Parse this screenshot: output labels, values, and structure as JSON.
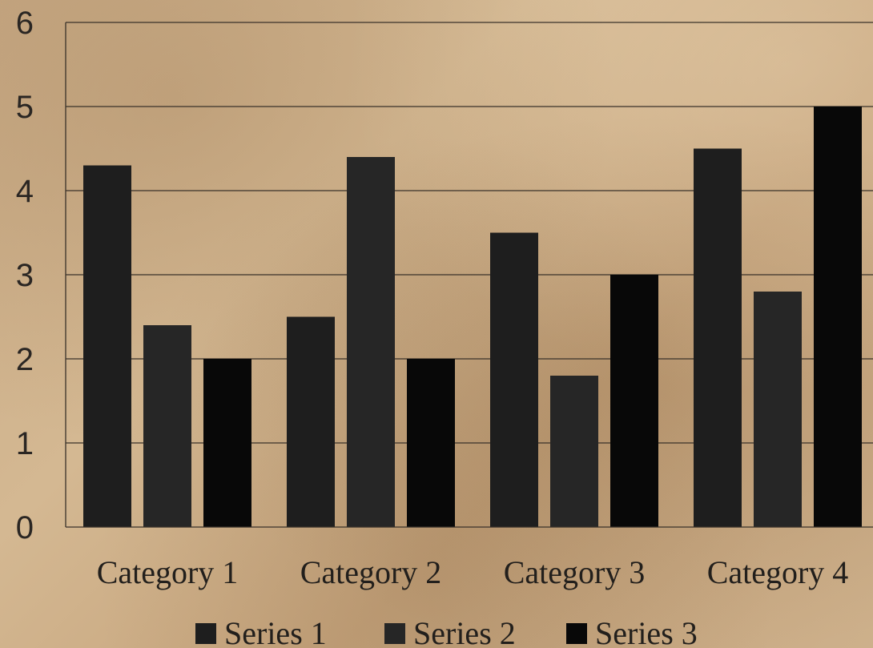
{
  "chart_data": {
    "type": "bar",
    "categories": [
      "Category 1",
      "Category 2",
      "Category 3",
      "Category 4"
    ],
    "series": [
      {
        "name": "Series 1",
        "values": [
          4.3,
          2.5,
          3.5,
          4.5
        ],
        "color": "#1e1e1e"
      },
      {
        "name": "Series 2",
        "values": [
          2.4,
          4.4,
          1.8,
          2.8
        ],
        "color": "#262626"
      },
      {
        "name": "Series 3",
        "values": [
          2,
          2,
          3,
          5
        ],
        "color": "#080808"
      }
    ],
    "ylim": [
      0,
      6
    ],
    "yticks": [
      "0",
      "1",
      "2",
      "3",
      "4",
      "5",
      "6"
    ],
    "grid": true,
    "legend_position": "bottom",
    "title": "",
    "xlabel": "",
    "ylabel": ""
  }
}
